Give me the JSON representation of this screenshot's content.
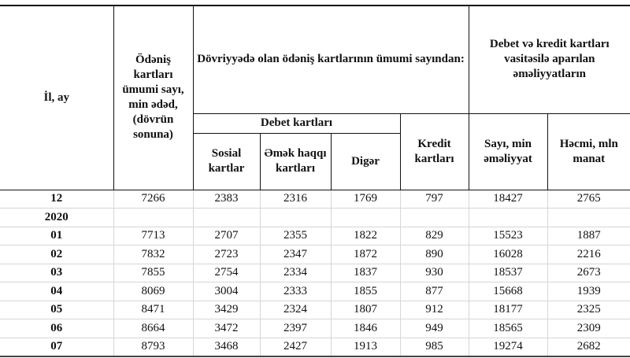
{
  "header": {
    "year_month": "İl, ay",
    "total": "Ödəniş kartları ümumi sayı, min ədəd, (dövrün sonuna)",
    "in_circulation": "Dövriyyədə olan ödəniş kartlarının ümumi sayından:",
    "operations": "Debet və kredit  kartları vasitəsilə aparılan əməliyyatların",
    "debit": "Debet kartları",
    "social": "Sosial kartlar",
    "salary": "Əmək haqqı kartları",
    "other": "Digər",
    "credit": "Kredit kartları",
    "count": "Sayı, min əməliyyat",
    "volume": "Həcmi, mln manat"
  },
  "rows": [
    {
      "label": "12",
      "values": [
        "7266",
        "2383",
        "2316",
        "1769",
        "797",
        "18427",
        "2765"
      ]
    },
    {
      "label": "2020",
      "values": [
        "",
        "",
        "",
        "",
        "",
        "",
        ""
      ]
    },
    {
      "label": "01",
      "values": [
        "7713",
        "2707",
        "2355",
        "1822",
        "829",
        "15523",
        "1887"
      ]
    },
    {
      "label": "02",
      "values": [
        "7832",
        "2723",
        "2347",
        "1872",
        "890",
        "16028",
        "2216"
      ]
    },
    {
      "label": "03",
      "values": [
        "7855",
        "2754",
        "2334",
        "1837",
        "930",
        "18537",
        "2673"
      ]
    },
    {
      "label": "04",
      "values": [
        "8069",
        "3004",
        "2333",
        "1855",
        "877",
        "15668",
        "1939"
      ]
    },
    {
      "label": "05",
      "values": [
        "8471",
        "3429",
        "2324",
        "1807",
        "912",
        "18177",
        "2325"
      ]
    },
    {
      "label": "06",
      "values": [
        "8664",
        "3472",
        "2397",
        "1846",
        "949",
        "18565",
        "2309"
      ]
    },
    {
      "label": "07",
      "values": [
        "8793",
        "3468",
        "2427",
        "1913",
        "985",
        "19274",
        "2682"
      ]
    }
  ]
}
